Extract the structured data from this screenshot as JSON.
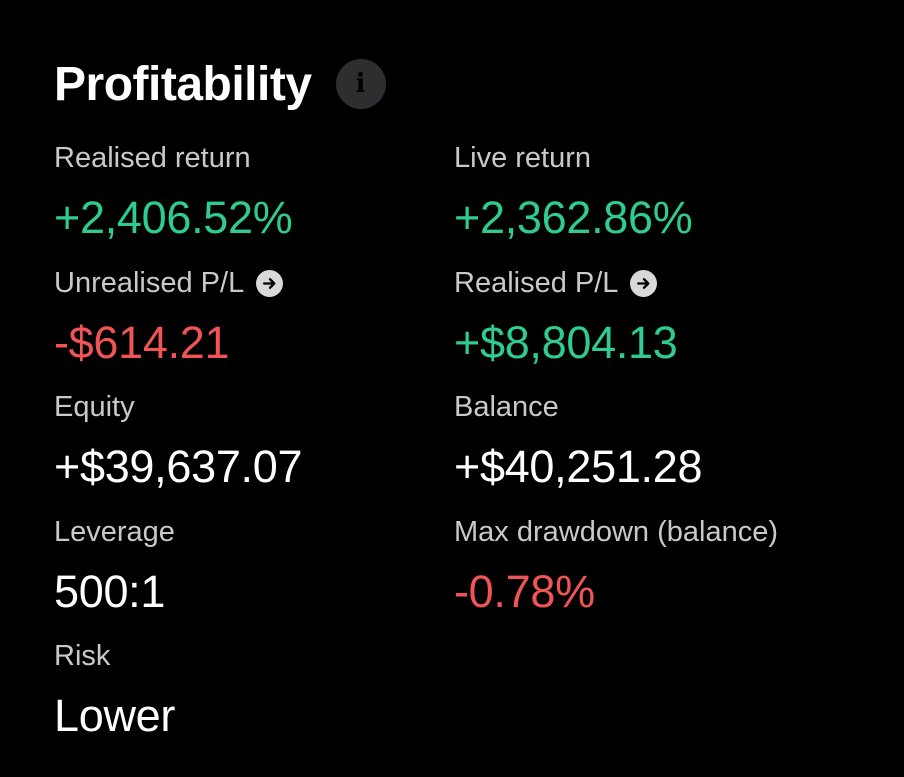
{
  "header": {
    "title": "Profitability",
    "info_icon": "info-icon"
  },
  "colors": {
    "positive": "#2ecc8f",
    "negative": "#f05454",
    "neutral": "#ffffff",
    "label": "#c9c9cb",
    "background": "#000000"
  },
  "metrics": {
    "realised_return": {
      "label": "Realised return",
      "value": "+2,406.52%"
    },
    "live_return": {
      "label": "Live return",
      "value": "+2,362.86%"
    },
    "unrealised_pl": {
      "label": "Unrealised P/L",
      "value": "-$614.21",
      "icon": "arrow-right-circle-icon"
    },
    "realised_pl": {
      "label": "Realised P/L",
      "value": "+$8,804.13",
      "icon": "arrow-right-circle-icon"
    },
    "equity": {
      "label": "Equity",
      "value": "+$39,637.07"
    },
    "balance": {
      "label": "Balance",
      "value": "+$40,251.28"
    },
    "leverage": {
      "label": "Leverage",
      "value": "500:1"
    },
    "max_drawdown": {
      "label": "Max drawdown (balance)",
      "value": "-0.78%"
    },
    "risk": {
      "label": "Risk",
      "value": "Lower"
    }
  }
}
